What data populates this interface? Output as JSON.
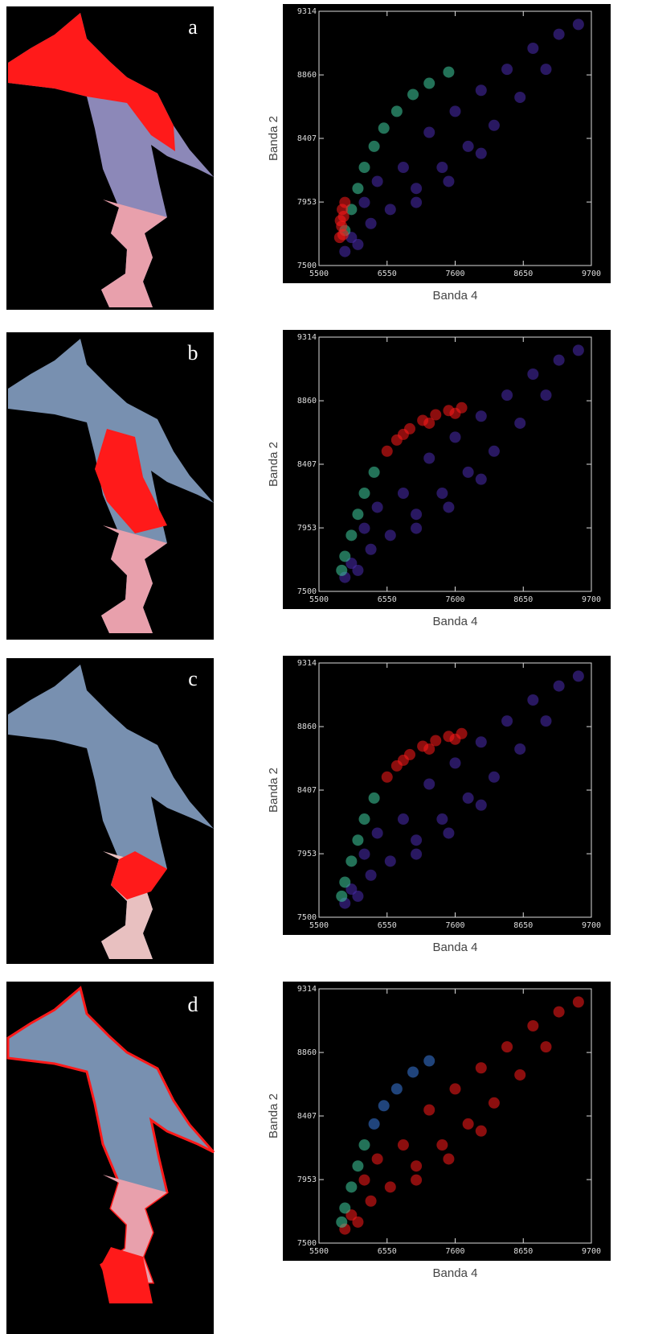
{
  "chart_data": [
    {
      "type": "scatter",
      "panel_label": "a",
      "xlabel": "Banda 4",
      "ylabel": "Banda 2",
      "xlim": [
        5500,
        9700
      ],
      "ylim": [
        7500,
        9314
      ],
      "xticks": [
        5500,
        6550,
        7600,
        8650,
        9700
      ],
      "yticks": [
        7500,
        7953,
        8407,
        8860,
        9314
      ],
      "series": [
        {
          "color": "#4a2cb0",
          "x": [
            6000,
            6300,
            6600,
            7000,
            7400,
            7800,
            8200,
            8600,
            9000,
            6800,
            7200,
            7600,
            8000,
            8400,
            8800,
            9200,
            9500,
            6400,
            6200,
            7000,
            7500,
            8000,
            6100,
            5900
          ],
          "values": [
            7700,
            7800,
            7900,
            8050,
            8200,
            8350,
            8500,
            8700,
            8900,
            8200,
            8450,
            8600,
            8750,
            8900,
            9050,
            9150,
            9220,
            8100,
            7950,
            7950,
            8100,
            8300,
            7650,
            7600
          ]
        },
        {
          "color": "#3fd0a0",
          "x": [
            5900,
            6000,
            6100,
            6200,
            6350,
            6500,
            6700,
            6950,
            7200,
            7500
          ],
          "values": [
            7750,
            7900,
            8050,
            8200,
            8350,
            8480,
            8600,
            8720,
            8800,
            8880
          ]
        },
        {
          "color": "#ff1a1a",
          "x": [
            5820,
            5850,
            5880,
            5860,
            5900,
            5830,
            5870
          ],
          "values": [
            7700,
            7780,
            7850,
            7900,
            7950,
            7820,
            7720
          ]
        }
      ]
    },
    {
      "type": "scatter",
      "panel_label": "b",
      "xlabel": "Banda 4",
      "ylabel": "Banda 2",
      "xlim": [
        5500,
        9700
      ],
      "ylim": [
        7500,
        9314
      ],
      "xticks": [
        5500,
        6550,
        7600,
        8650,
        9700
      ],
      "yticks": [
        7500,
        7953,
        8407,
        8860,
        9314
      ],
      "series": [
        {
          "color": "#4a2cb0",
          "x": [
            6000,
            6300,
            6600,
            7000,
            7400,
            7800,
            8200,
            8600,
            9000,
            6800,
            7200,
            7600,
            8000,
            8400,
            8800,
            9200,
            9500,
            6400,
            6200,
            7000,
            7500,
            8000,
            6100,
            5900
          ],
          "values": [
            7700,
            7800,
            7900,
            8050,
            8200,
            8350,
            8500,
            8700,
            8900,
            8200,
            8450,
            8600,
            8750,
            8900,
            9050,
            9150,
            9220,
            8100,
            7950,
            7950,
            8100,
            8300,
            7650,
            7600
          ]
        },
        {
          "color": "#3fd0a0",
          "x": [
            5850,
            5900,
            6000,
            6100,
            6200,
            6350
          ],
          "values": [
            7650,
            7750,
            7900,
            8050,
            8200,
            8350
          ]
        },
        {
          "color": "#ff1a1a",
          "x": [
            6550,
            6700,
            6900,
            7100,
            7300,
            7500,
            7700,
            6800,
            7200,
            7600
          ],
          "values": [
            8500,
            8580,
            8660,
            8720,
            8760,
            8790,
            8810,
            8620,
            8700,
            8770
          ]
        }
      ]
    },
    {
      "type": "scatter",
      "panel_label": "c",
      "xlabel": "Banda 4",
      "ylabel": "Banda 2",
      "xlim": [
        5500,
        9700
      ],
      "ylim": [
        7500,
        9314
      ],
      "xticks": [
        5500,
        6550,
        7600,
        8650,
        9700
      ],
      "yticks": [
        7500,
        7953,
        8407,
        8860,
        9314
      ],
      "series": [
        {
          "color": "#4a2cb0",
          "x": [
            6000,
            6300,
            6600,
            7000,
            7400,
            7800,
            8200,
            8600,
            9000,
            6800,
            7200,
            7600,
            8000,
            8400,
            8800,
            9200,
            9500,
            6400,
            6200,
            7000,
            7500,
            8000,
            6100,
            5900
          ],
          "values": [
            7700,
            7800,
            7900,
            8050,
            8200,
            8350,
            8500,
            8700,
            8900,
            8200,
            8450,
            8600,
            8750,
            8900,
            9050,
            9150,
            9220,
            8100,
            7950,
            7950,
            8100,
            8300,
            7650,
            7600
          ]
        },
        {
          "color": "#3fd0a0",
          "x": [
            5850,
            5900,
            6000,
            6100,
            6200,
            6350
          ],
          "values": [
            7650,
            7750,
            7900,
            8050,
            8200,
            8350
          ]
        },
        {
          "color": "#ff1a1a",
          "x": [
            6550,
            6700,
            6900,
            7100,
            7300,
            7500,
            7700,
            6800,
            7200,
            7600
          ],
          "values": [
            8500,
            8580,
            8660,
            8720,
            8760,
            8790,
            8810,
            8620,
            8700,
            8770
          ]
        }
      ]
    },
    {
      "type": "scatter",
      "panel_label": "d",
      "xlabel": "Banda 4",
      "ylabel": "Banda 2",
      "xlim": [
        5500,
        9700
      ],
      "ylim": [
        7500,
        9314
      ],
      "xticks": [
        5500,
        6550,
        7600,
        8650,
        9700
      ],
      "yticks": [
        7500,
        7953,
        8407,
        8860,
        9314
      ],
      "series": [
        {
          "color": "#ff1a1a",
          "x": [
            6000,
            6300,
            6600,
            7000,
            7400,
            7800,
            8200,
            8600,
            9000,
            6800,
            7200,
            7600,
            8000,
            8400,
            8800,
            9200,
            9500,
            6400,
            6200,
            7000,
            7500,
            8000,
            6100,
            5900
          ],
          "values": [
            7700,
            7800,
            7900,
            8050,
            8200,
            8350,
            8500,
            8700,
            8900,
            8200,
            8450,
            8600,
            8750,
            8900,
            9050,
            9150,
            9220,
            8100,
            7950,
            7950,
            8100,
            8300,
            7650,
            7600
          ]
        },
        {
          "color": "#3a7be0",
          "x": [
            6350,
            6500,
            6700,
            6950,
            7200
          ],
          "values": [
            8350,
            8480,
            8600,
            8720,
            8800
          ]
        },
        {
          "color": "#3fd0a0",
          "x": [
            5850,
            5900,
            6000,
            6100,
            6200
          ],
          "values": [
            7650,
            7750,
            7900,
            8050,
            8200
          ]
        }
      ]
    }
  ]
}
